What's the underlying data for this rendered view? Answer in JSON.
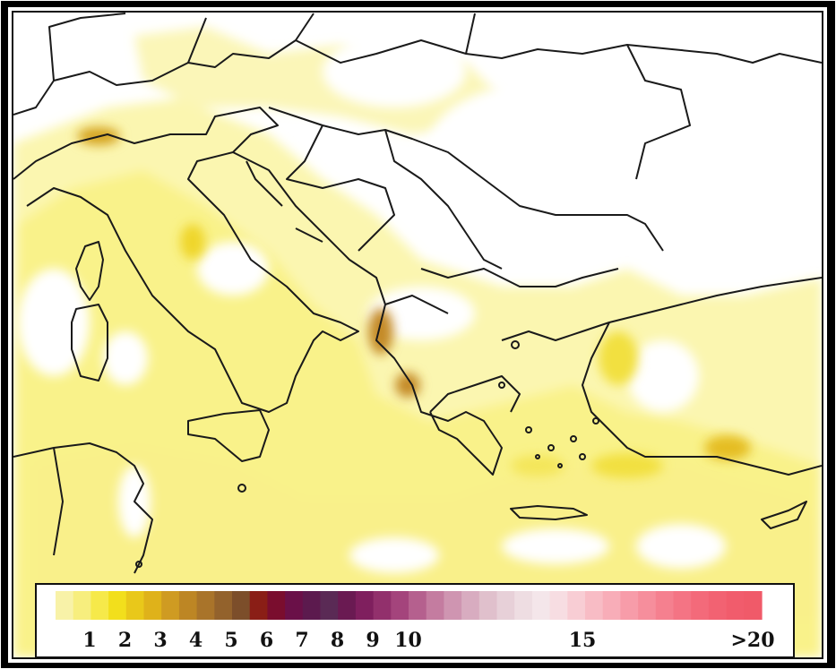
{
  "legend": {
    "labels": [
      {
        "text": "1",
        "value": 1
      },
      {
        "text": "2",
        "value": 2
      },
      {
        "text": "3",
        "value": 3
      },
      {
        "text": "4",
        "value": 4
      },
      {
        "text": "5",
        "value": 5
      },
      {
        "text": "6",
        "value": 6
      },
      {
        "text": "7",
        "value": 7
      },
      {
        "text": "8",
        "value": 8
      },
      {
        "text": "9",
        "value": 9
      },
      {
        "text": "10",
        "value": 10
      },
      {
        "text": "15",
        "value": 15
      },
      {
        "text": ">20",
        "value": 20
      }
    ],
    "colors": [
      "#f8f2a8",
      "#f7ee7e",
      "#f6e94a",
      "#f2df1c",
      "#e9c81a",
      "#dfb21a",
      "#cf9b22",
      "#bd8624",
      "#a9742a",
      "#93622c",
      "#7c4e2a",
      "#8a1e16",
      "#7a0d2e",
      "#6a1048",
      "#5c1a4e",
      "#5a2a55",
      "#6a1a52",
      "#7f1f5e",
      "#92306c",
      "#a4447c",
      "#b5608e",
      "#c47ca0",
      "#cf95b1",
      "#d8acc0",
      "#e0c0cc",
      "#e7d0d8",
      "#eedde2",
      "#f4e6ea",
      "#f7dde2",
      "#f8cdd4",
      "#f8bcc5",
      "#f8adb8",
      "#f79ca9",
      "#f68e9c",
      "#f5808f",
      "#f47484",
      "#f36a7a",
      "#f26272",
      "#f15c6c",
      "#f05a69"
    ]
  }
}
